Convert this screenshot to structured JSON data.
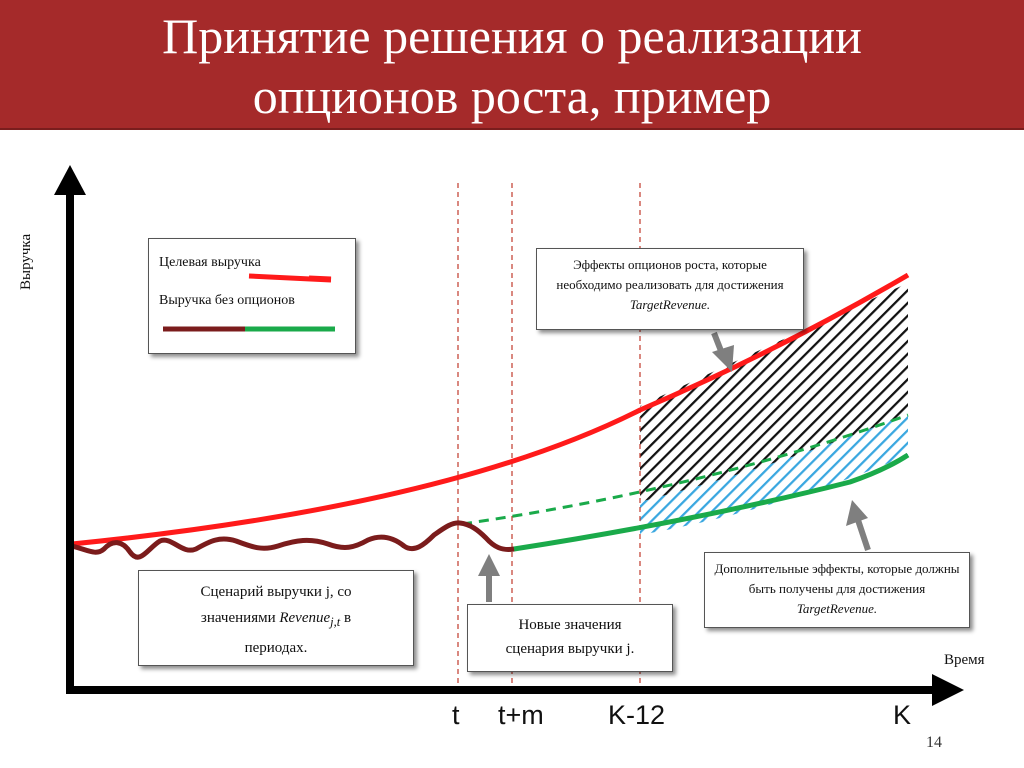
{
  "slide": {
    "title_line1": "Принятие решения о реализации",
    "title_line2": "опционов роста, пример",
    "page_number": "14"
  },
  "axes": {
    "y_label": "Выручка",
    "x_label": "Время",
    "ticks": [
      "t",
      "t+m",
      "K-12",
      "K"
    ]
  },
  "legend": {
    "target_label": "Целевая выручка",
    "no_options_label": "Выручка без опционов"
  },
  "notes": {
    "growth_effects_text": "Эффекты опционов роста, которые необходимо реализовать для достижения",
    "growth_effects_math": "TargetRevenue.",
    "additional_effects_text": "Дополнительные эффекты, которые должны быть получены для достижения",
    "additional_effects_math": "TargetRevenue.",
    "scenario_line1": "Сценарий выручки j, со",
    "scenario_line2_pre": "значениями",
    "scenario_math": "Revenue",
    "scenario_sub": "j,t",
    "scenario_line2_post": "в",
    "scenario_line3": "периодах.",
    "new_values_line1": "Новые значения",
    "new_values_line2": "сценария выручки j."
  },
  "colors": {
    "title_bg": "#a52a2a",
    "target_line": "#ff1a1a",
    "revenue_history": "#7b1c1c",
    "revenue_new": "#1aaa4a",
    "hatch_black": "#111111",
    "hatch_blue": "#39a7e0",
    "guide_dashed": "#c0392b"
  }
}
